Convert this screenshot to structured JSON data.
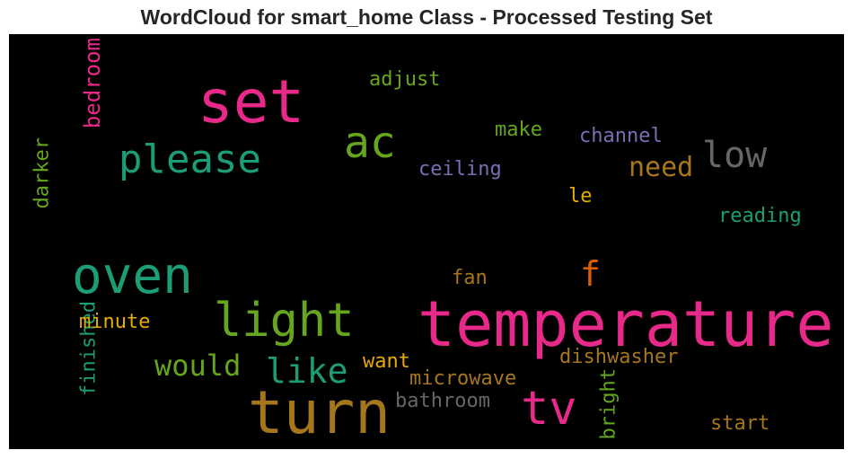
{
  "chart_data": {
    "type": "wordcloud",
    "title": "WordCloud for smart_home Class - Processed Testing Set",
    "background": "#000000",
    "words": [
      {
        "text": "temperature",
        "color": "#e7298a"
      },
      {
        "text": "turn",
        "color": "#a6761d"
      },
      {
        "text": "set",
        "color": "#e7298a"
      },
      {
        "text": "oven",
        "color": "#1b9e77"
      },
      {
        "text": "light",
        "color": "#66a61e"
      },
      {
        "text": "please",
        "color": "#1b9e77"
      },
      {
        "text": "tv",
        "color": "#e7298a"
      },
      {
        "text": "ac",
        "color": "#66a61e"
      },
      {
        "text": "low",
        "color": "#666666"
      },
      {
        "text": "like",
        "color": "#1b9e77"
      },
      {
        "text": "would",
        "color": "#66a61e"
      },
      {
        "text": "f",
        "color": "#d95f02"
      },
      {
        "text": "need",
        "color": "#a6761d"
      },
      {
        "text": "microwave",
        "color": "#a6761d"
      },
      {
        "text": "dishwasher",
        "color": "#a6761d"
      },
      {
        "text": "bathroom",
        "color": "#666666"
      },
      {
        "text": "ceiling",
        "color": "#7570b3"
      },
      {
        "text": "channel",
        "color": "#7570b3"
      },
      {
        "text": "adjust",
        "color": "#66a61e"
      },
      {
        "text": "bedroom",
        "color": "#e7298a"
      },
      {
        "text": "finished",
        "color": "#1b9e77"
      },
      {
        "text": "darker",
        "color": "#66a61e"
      },
      {
        "text": "bright",
        "color": "#66a61e"
      },
      {
        "text": "minute",
        "color": "#e6ab02"
      },
      {
        "text": "reading",
        "color": "#1b9e77"
      },
      {
        "text": "start",
        "color": "#a6761d"
      },
      {
        "text": "want",
        "color": "#e6ab02"
      },
      {
        "text": "make",
        "color": "#66a61e"
      },
      {
        "text": "fan",
        "color": "#a6761d"
      },
      {
        "text": "le",
        "color": "#e6ab02"
      }
    ]
  }
}
